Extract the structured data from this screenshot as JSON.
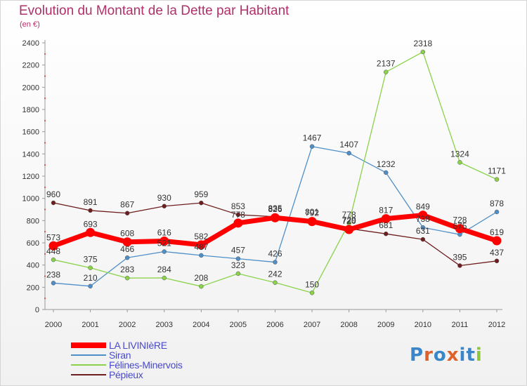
{
  "chart_data": {
    "type": "line",
    "title": "Evolution du Montant de la Dette par Habitant",
    "unit_label": "(en €)",
    "x": [
      "2000",
      "2001",
      "2002",
      "2003",
      "2004",
      "2005",
      "2006",
      "2007",
      "2008",
      "2009",
      "2010",
      "2011",
      "2012"
    ],
    "ylim": [
      0,
      2400
    ],
    "yticks": [
      0,
      200,
      400,
      600,
      800,
      1000,
      1200,
      1400,
      1600,
      1800,
      2000,
      2200,
      2400
    ],
    "grid": false,
    "legend_position": "bottom-left",
    "series": [
      {
        "name": "LA LIVINIèRE",
        "color": "#ff0000",
        "values": [
          573,
          693,
          608,
          616,
          582,
          778,
          826,
          792,
          720,
          817,
          849,
          728,
          619
        ]
      },
      {
        "name": "Siran",
        "color": "#4f8fc8",
        "values": [
          238,
          210,
          466,
          521,
          487,
          457,
          426,
          1467,
          1407,
          1232,
          738,
          675,
          878
        ]
      },
      {
        "name": "Félines-Minervois",
        "color": "#8ad24a",
        "values": [
          448,
          375,
          283,
          284,
          208,
          323,
          242,
          150,
          778,
          2137,
          2318,
          1324,
          1171
        ]
      },
      {
        "name": "Pépieux",
        "color": "#6e1e1e",
        "values": [
          960,
          891,
          867,
          930,
          959,
          853,
          835,
          801,
          729,
          681,
          631,
          395,
          437
        ]
      }
    ]
  },
  "logo": {
    "text": "Proxiti",
    "colors": [
      "#3a86c8",
      "#e0602a",
      "#3a86c8",
      "#e0602a",
      "#3a86c8",
      "#3a86c8",
      "#8ac83a"
    ]
  }
}
